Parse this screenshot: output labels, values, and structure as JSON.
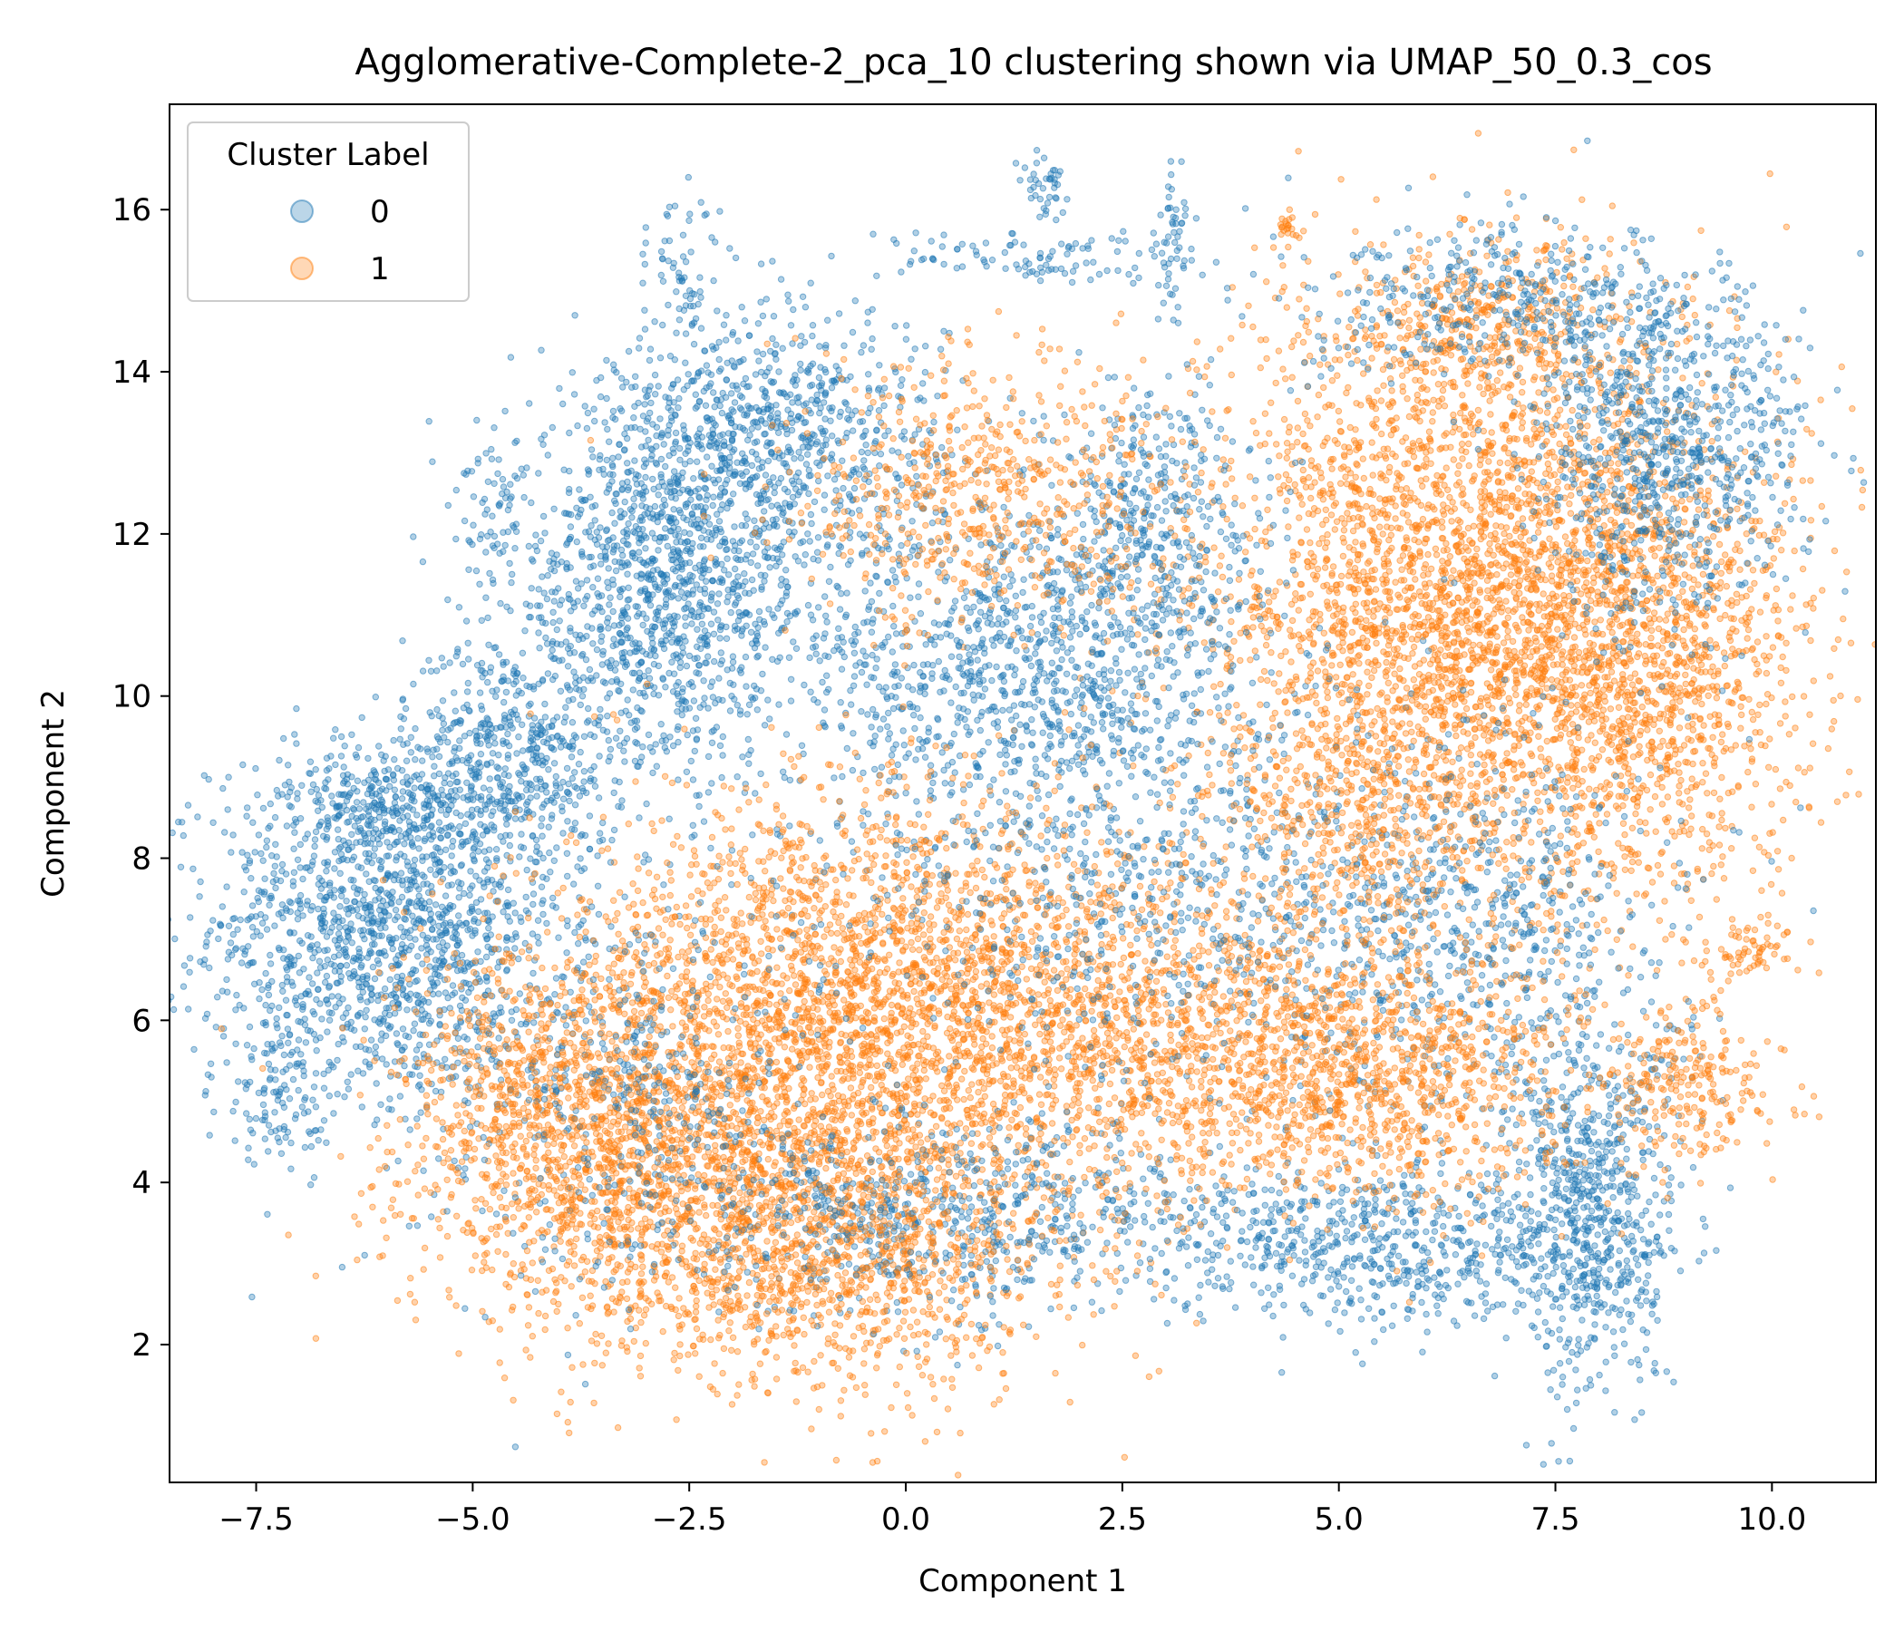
{
  "chart_data": {
    "type": "scatter",
    "title": "Agglomerative-Complete-2_pca_10 clustering shown via UMAP_50_0.3_cos",
    "xlabel": "Component 1",
    "ylabel": "Component 2",
    "xlim": [
      -8.5,
      11.2
    ],
    "ylim": [
      0.3,
      17.3
    ],
    "x_ticks": [
      -7.5,
      -5.0,
      -2.5,
      0.0,
      2.5,
      5.0,
      7.5,
      10.0
    ],
    "x_tick_labels": [
      "−7.5",
      "−5.0",
      "−2.5",
      "0.0",
      "2.5",
      "5.0",
      "7.5",
      "10.0"
    ],
    "y_ticks": [
      2,
      4,
      6,
      8,
      10,
      12,
      14,
      16
    ],
    "y_tick_labels": [
      "2",
      "4",
      "6",
      "8",
      "10",
      "12",
      "14",
      "16"
    ],
    "grid": false,
    "legend": {
      "title": "Cluster Label",
      "placement": "top-left",
      "entries": [
        "0",
        "1"
      ]
    },
    "series": [
      {
        "name": "0",
        "color": "#1f77b4",
        "regions": [
          {
            "cx": -6.0,
            "cy": 7.2,
            "sx": 1.0,
            "sy": 1.1,
            "n": 1400
          },
          {
            "cx": -4.6,
            "cy": 9.2,
            "sx": 0.6,
            "sy": 0.8,
            "n": 500
          },
          {
            "cx": -2.8,
            "cy": 11.4,
            "sx": 0.9,
            "sy": 1.2,
            "n": 1300
          },
          {
            "cx": -1.4,
            "cy": 13.2,
            "sx": 0.9,
            "sy": 0.8,
            "n": 700
          },
          {
            "cx": 1.4,
            "cy": 10.3,
            "sx": 1.4,
            "sy": 1.1,
            "n": 1200
          },
          {
            "cx": 2.8,
            "cy": 12.3,
            "sx": 0.6,
            "sy": 0.8,
            "n": 350
          },
          {
            "cx": 7.9,
            "cy": 3.6,
            "sx": 0.5,
            "sy": 1.1,
            "n": 700
          },
          {
            "cx": 5.4,
            "cy": 3.2,
            "sx": 1.2,
            "sy": 0.5,
            "n": 600
          },
          {
            "cx": 6.6,
            "cy": 7.2,
            "sx": 1.2,
            "sy": 1.3,
            "n": 700
          },
          {
            "cx": 8.8,
            "cy": 13.0,
            "sx": 0.8,
            "sy": 1.0,
            "n": 800
          },
          {
            "cx": 7.0,
            "cy": 14.8,
            "sx": 1.2,
            "sy": 0.5,
            "n": 400
          },
          {
            "cx": 0.6,
            "cy": 3.6,
            "sx": 1.6,
            "sy": 0.6,
            "n": 700
          },
          {
            "cx": -3.2,
            "cy": 5.2,
            "sx": 1.2,
            "sy": 1.2,
            "n": 500
          },
          {
            "cx": 3.0,
            "cy": 7.4,
            "sx": 1.8,
            "sy": 1.1,
            "n": 600
          },
          {
            "cx": -2.6,
            "cy": 15.2,
            "sx": 0.2,
            "sy": 0.5,
            "n": 60
          },
          {
            "cx": 1.6,
            "cy": 16.3,
            "sx": 0.15,
            "sy": 0.25,
            "n": 40
          },
          {
            "cx": 3.1,
            "cy": 15.8,
            "sx": 0.1,
            "sy": 0.6,
            "n": 50
          },
          {
            "cx": 1.3,
            "cy": 15.4,
            "sx": 0.9,
            "sy": 0.15,
            "n": 100
          },
          {
            "cx": -7.2,
            "cy": 5.2,
            "sx": 0.35,
            "sy": 0.6,
            "n": 120
          },
          {
            "cx": -4.8,
            "cy": 12.3,
            "sx": 0.2,
            "sy": 0.4,
            "n": 60
          },
          {
            "cx": -6.2,
            "cy": 8.6,
            "sx": 0.4,
            "sy": 0.3,
            "n": 150
          }
        ]
      },
      {
        "name": "1",
        "color": "#ff7f0e",
        "regions": [
          {
            "cx": 6.6,
            "cy": 11.2,
            "sx": 1.6,
            "sy": 1.7,
            "n": 3400
          },
          {
            "cx": 8.6,
            "cy": 10.2,
            "sx": 0.9,
            "sy": 1.5,
            "n": 900
          },
          {
            "cx": 6.8,
            "cy": 14.6,
            "sx": 1.0,
            "sy": 0.5,
            "n": 400
          },
          {
            "cx": -0.5,
            "cy": 6.3,
            "sx": 1.8,
            "sy": 1.3,
            "n": 2600
          },
          {
            "cx": -2.6,
            "cy": 4.2,
            "sx": 1.4,
            "sy": 1.2,
            "n": 1800
          },
          {
            "cx": -0.6,
            "cy": 3.2,
            "sx": 1.4,
            "sy": 0.9,
            "n": 1000
          },
          {
            "cx": 3.2,
            "cy": 5.8,
            "sx": 1.6,
            "sy": 1.0,
            "n": 1200
          },
          {
            "cx": 5.6,
            "cy": 5.3,
            "sx": 1.1,
            "sy": 0.8,
            "n": 800
          },
          {
            "cx": 0.9,
            "cy": 12.5,
            "sx": 1.1,
            "sy": 0.9,
            "n": 600
          },
          {
            "cx": 9.0,
            "cy": 5.2,
            "sx": 0.5,
            "sy": 0.5,
            "n": 250
          },
          {
            "cx": 5.2,
            "cy": 8.6,
            "sx": 0.7,
            "sy": 0.8,
            "n": 400
          },
          {
            "cx": -4.3,
            "cy": 4.8,
            "sx": 0.8,
            "sy": 0.9,
            "n": 500
          },
          {
            "cx": 9.8,
            "cy": 6.9,
            "sx": 0.3,
            "sy": 0.15,
            "n": 60
          },
          {
            "cx": 4.4,
            "cy": 15.8,
            "sx": 0.05,
            "sy": 0.08,
            "n": 20
          }
        ]
      }
    ]
  }
}
